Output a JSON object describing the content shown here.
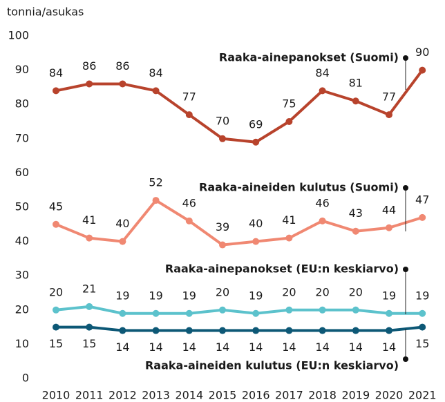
{
  "chart_data": {
    "type": "line",
    "y_axis_label": "tonnia/asukas",
    "categories": [
      "2010",
      "2011",
      "2012",
      "2013",
      "2014",
      "2015",
      "2016",
      "2017",
      "2018",
      "2019",
      "2020",
      "2021"
    ],
    "ylim": [
      0,
      100
    ],
    "yticks": [
      0,
      10,
      20,
      30,
      40,
      50,
      60,
      70,
      80,
      90,
      100
    ],
    "series": [
      {
        "name": "Raaka-ainepanokset (Suomi)",
        "color": "#b8432c",
        "values": [
          84,
          86,
          86,
          84,
          77,
          70,
          69,
          75,
          84,
          81,
          77,
          90
        ]
      },
      {
        "name": "Raaka-aineiden kulutus (Suomi)",
        "color": "#f08872",
        "values": [
          45,
          41,
          40,
          52,
          46,
          39,
          40,
          41,
          46,
          43,
          44,
          47
        ]
      },
      {
        "name": "Raaka-ainepanokset (EU:n keskiarvo)",
        "color": "#5cc2cc",
        "values": [
          20,
          21,
          19,
          19,
          19,
          20,
          19,
          20,
          20,
          20,
          19,
          19
        ]
      },
      {
        "name": "Raaka-aineiden kulutus (EU:n keskiarvo)",
        "color": "#0d5876",
        "values": [
          15,
          15,
          14,
          14,
          14,
          14,
          14,
          14,
          14,
          14,
          14,
          15
        ]
      }
    ]
  }
}
